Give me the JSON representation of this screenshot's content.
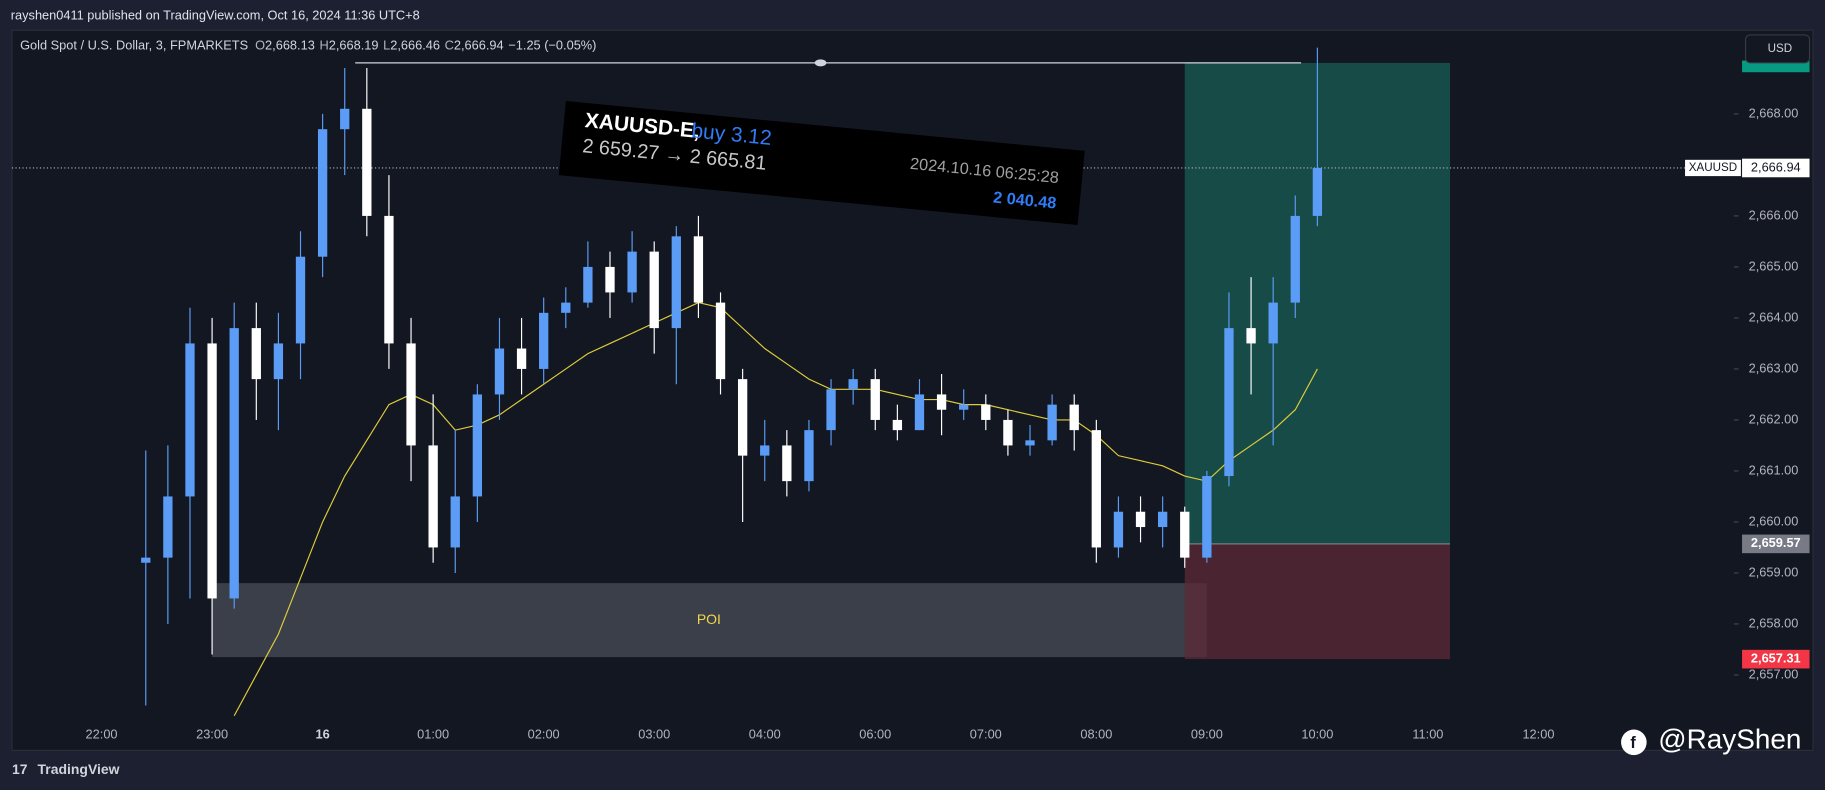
{
  "header": {
    "published": "rayshen0411 published on TradingView.com, Oct 16, 2024 11:36 UTC+8",
    "symbol": "Gold Spot / U.S. Dollar, 3, FPMARKETS",
    "ohlc": [
      {
        "key": "O",
        "value": "2,668.13"
      },
      {
        "key": "H",
        "value": "2,668.19"
      },
      {
        "key": "L",
        "value": "2,666.46"
      },
      {
        "key": "C",
        "value": "2,666.94"
      }
    ],
    "change": "−1.25 (−0.05%)"
  },
  "currency": "USD",
  "trade_card": {
    "symbol": "XAUUSD-E,",
    "side": "buy 3.12",
    "prices": "2 659.27 → 2 665.81",
    "time": "2024.10.16 06:25:28",
    "profit": "2 040.48"
  },
  "watermark": "@RayShen",
  "logo": "TradingView",
  "chart_data": {
    "type": "candlestick",
    "categories": [
      null,
      null,
      null,
      null,
      "22:00",
      null,
      null,
      null,
      null,
      "23:00",
      null,
      null,
      null,
      null,
      "16",
      null,
      null,
      null,
      null,
      "01:00",
      null,
      null,
      null,
      null,
      "02:00",
      null,
      null,
      null,
      null,
      "03:00",
      null,
      null,
      null,
      null,
      "04:00",
      null,
      null,
      null,
      null,
      "06:00",
      null,
      null,
      null,
      null,
      "07:00",
      null,
      null,
      null,
      null,
      "08:00",
      null,
      null,
      null,
      null,
      "09:00",
      null,
      null,
      null,
      null,
      "10:00",
      null,
      null,
      null,
      null,
      "11:00",
      null,
      null,
      null,
      null,
      "12:00",
      null,
      null,
      null,
      null,
      null,
      null,
      null,
      null
    ],
    "open": [
      null,
      null,
      null,
      null,
      null,
      null,
      2659.2,
      2659.3,
      2660.5,
      2663.5,
      2658.5,
      2663.8,
      2662.8,
      2663.5,
      2665.2,
      2667.7,
      2668.1,
      2666.0,
      2663.5,
      2661.5,
      2659.5,
      2660.5,
      2662.5,
      2663.4,
      2663.0,
      2664.1,
      2664.3,
      2665.0,
      2664.5,
      2665.3,
      2663.8,
      2665.6,
      2664.3,
      2662.8,
      2661.3,
      2661.5,
      2660.8,
      2661.8,
      2662.6,
      2662.8,
      2662.0,
      2661.8,
      2662.5,
      2662.2,
      2662.3,
      2662.0,
      2661.5,
      2661.6,
      2662.3,
      2661.8,
      2659.5,
      2660.2,
      2659.9,
      2660.2,
      2659.3,
      2660.9,
      2663.8,
      2663.5,
      2664.3,
      2666.0,
      null,
      null,
      null,
      null,
      null,
      null,
      null,
      null,
      null,
      null,
      null,
      null,
      null,
      null,
      null,
      null,
      null,
      null
    ],
    "high": [
      null,
      null,
      null,
      null,
      null,
      null,
      2661.4,
      2661.5,
      2664.2,
      2664.0,
      2664.3,
      2664.3,
      2664.1,
      2665.7,
      2668.0,
      2668.9,
      2668.9,
      2666.8,
      2664.0,
      2662.5,
      2661.8,
      2662.7,
      2664.0,
      2664.0,
      2664.4,
      2664.6,
      2665.5,
      2665.3,
      2665.7,
      2665.5,
      2665.8,
      2666.0,
      2664.5,
      2663.0,
      2662.0,
      2661.8,
      2662.0,
      2662.8,
      2663.0,
      2663.0,
      2662.3,
      2662.8,
      2662.9,
      2662.6,
      2662.5,
      2662.2,
      2661.9,
      2662.5,
      2662.5,
      2662.0,
      2660.5,
      2660.5,
      2660.5,
      2660.3,
      2661.0,
      2664.5,
      2664.8,
      2664.8,
      2666.4,
      2669.3,
      null,
      null,
      null,
      null,
      null,
      null,
      null,
      null,
      null,
      null,
      null,
      null,
      null,
      null,
      null,
      null,
      null,
      null
    ],
    "low": [
      null,
      null,
      null,
      null,
      null,
      null,
      2656.4,
      2658.0,
      2658.5,
      2657.4,
      2658.3,
      2662.0,
      2661.8,
      2662.8,
      2664.8,
      2666.8,
      2665.6,
      2663.0,
      2660.8,
      2659.2,
      2659.0,
      2660.0,
      2662.0,
      2662.5,
      2662.7,
      2663.8,
      2664.2,
      2664.0,
      2664.3,
      2663.3,
      2662.7,
      2664.0,
      2662.5,
      2660.0,
      2660.8,
      2660.5,
      2660.6,
      2661.5,
      2662.3,
      2661.8,
      2661.6,
      2661.8,
      2661.7,
      2662.0,
      2661.8,
      2661.3,
      2661.3,
      2661.5,
      2661.4,
      2659.2,
      2659.3,
      2659.6,
      2659.5,
      2659.1,
      2659.2,
      2660.7,
      2662.5,
      2661.5,
      2664.0,
      2665.8,
      null,
      null,
      null,
      null,
      null,
      null,
      null,
      null,
      null,
      null,
      null,
      null,
      null,
      null,
      null,
      null,
      null,
      null
    ],
    "close": [
      null,
      null,
      null,
      null,
      null,
      null,
      2659.3,
      2660.5,
      2663.5,
      2658.5,
      2663.8,
      2662.8,
      2663.5,
      2665.2,
      2667.7,
      2668.1,
      2666.0,
      2663.5,
      2661.5,
      2659.5,
      2660.5,
      2662.5,
      2663.4,
      2663.0,
      2664.1,
      2664.3,
      2665.0,
      2664.5,
      2665.3,
      2663.8,
      2665.6,
      2664.3,
      2662.8,
      2661.3,
      2661.5,
      2660.8,
      2661.8,
      2662.6,
      2662.8,
      2662.0,
      2661.8,
      2662.5,
      2662.2,
      2662.3,
      2662.0,
      2661.5,
      2661.6,
      2662.3,
      2661.8,
      2659.5,
      2660.2,
      2659.9,
      2660.2,
      2659.3,
      2660.9,
      2663.8,
      2663.5,
      2664.3,
      2666.0,
      2666.94,
      null,
      null,
      null,
      null,
      null,
      null,
      null,
      null,
      null,
      null,
      null,
      null,
      null,
      null,
      null,
      null,
      null,
      null
    ],
    "up_color": "#5b9cf6",
    "down_color": "#ffffff",
    "ma": {
      "color": "#e0cc3a",
      "values": [
        null,
        null,
        null,
        null,
        null,
        null,
        null,
        null,
        null,
        null,
        2656.2,
        2657.0,
        2657.8,
        2658.9,
        2660.0,
        2660.9,
        2661.6,
        2662.3,
        2662.5,
        2662.3,
        2661.8,
        2661.9,
        2662.1,
        2662.4,
        2662.7,
        2663.0,
        2663.3,
        2663.5,
        2663.7,
        2663.9,
        2664.1,
        2664.3,
        2664.2,
        2663.8,
        2663.4,
        2663.1,
        2662.8,
        2662.6,
        2662.6,
        2662.6,
        2662.5,
        2662.4,
        2662.4,
        2662.3,
        2662.3,
        2662.2,
        2662.1,
        2662.0,
        2662.0,
        2661.7,
        2661.3,
        2661.2,
        2661.1,
        2660.9,
        2660.8,
        2661.2,
        2661.5,
        2661.8,
        2662.2,
        2663.0,
        null,
        null,
        null,
        null,
        null,
        null,
        null,
        null,
        null,
        null,
        null,
        null,
        null,
        null,
        null,
        null,
        null,
        null
      ]
    },
    "ylim": [
      2655.52,
      2669.64
    ],
    "yticks": [
      {
        "value": 2657,
        "label": "2,657.00"
      },
      {
        "value": 2658,
        "label": "2,658.00"
      },
      {
        "value": 2659,
        "label": "2,659.00"
      },
      {
        "value": 2660,
        "label": "2,660.00"
      },
      {
        "value": 2661,
        "label": "2,661.00"
      },
      {
        "value": 2662,
        "label": "2,662.00"
      },
      {
        "value": 2663,
        "label": "2,663.00"
      },
      {
        "value": 2664,
        "label": "2,664.00"
      },
      {
        "value": 2665,
        "label": "2,665.00"
      },
      {
        "value": 2666,
        "label": "2,666.00"
      },
      {
        "value": 2667,
        "label": "2,667.00"
      },
      {
        "value": 2668,
        "label": "2,668.00"
      }
    ],
    "last_price": {
      "value": 2666.94,
      "label": "2,666.94",
      "tag": "XAUUSD"
    },
    "high_line": 2669.0,
    "poi": {
      "label": "POI",
      "low": 2657.35,
      "high": 2658.8
    },
    "position": {
      "target": 2669.0,
      "entry": {
        "value": 2659.57,
        "label": "2,659.57"
      },
      "stop": {
        "value": 2657.31,
        "label": "2,657.31"
      }
    }
  }
}
